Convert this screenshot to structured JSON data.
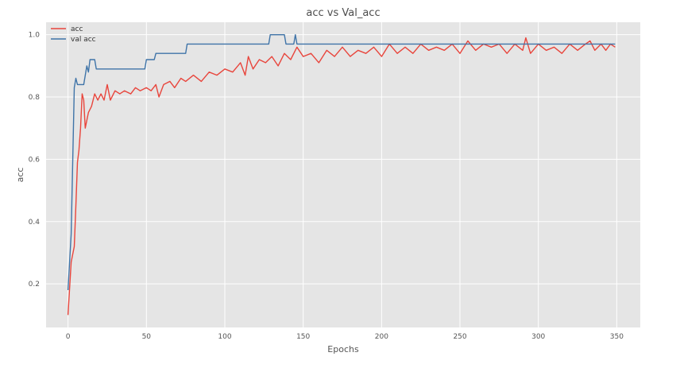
{
  "chart_data": {
    "type": "line",
    "title": "acc vs Val_acc",
    "xlabel": "Epochs",
    "ylabel": "acc",
    "xlim": [
      -14,
      365
    ],
    "ylim": [
      0.06,
      1.04
    ],
    "xticks": [
      0,
      50,
      100,
      150,
      200,
      250,
      300,
      350
    ],
    "yticks": [
      0.2,
      0.4,
      0.6,
      0.8,
      1.0
    ],
    "grid": true,
    "legend_position": "top-left",
    "background_color": "#e5e5e5",
    "series": [
      {
        "name": "acc",
        "color": "#e8453c",
        "points": [
          [
            0,
            0.1
          ],
          [
            2,
            0.27
          ],
          [
            4,
            0.32
          ],
          [
            5,
            0.45
          ],
          [
            6,
            0.59
          ],
          [
            7,
            0.63
          ],
          [
            8,
            0.7
          ],
          [
            9,
            0.81
          ],
          [
            10,
            0.79
          ],
          [
            11,
            0.7
          ],
          [
            13,
            0.75
          ],
          [
            15,
            0.77
          ],
          [
            17,
            0.81
          ],
          [
            19,
            0.79
          ],
          [
            21,
            0.81
          ],
          [
            23,
            0.79
          ],
          [
            25,
            0.84
          ],
          [
            27,
            0.79
          ],
          [
            30,
            0.82
          ],
          [
            33,
            0.81
          ],
          [
            36,
            0.82
          ],
          [
            40,
            0.81
          ],
          [
            43,
            0.83
          ],
          [
            46,
            0.82
          ],
          [
            50,
            0.83
          ],
          [
            53,
            0.82
          ],
          [
            56,
            0.84
          ],
          [
            58,
            0.8
          ],
          [
            61,
            0.84
          ],
          [
            65,
            0.85
          ],
          [
            68,
            0.83
          ],
          [
            72,
            0.86
          ],
          [
            75,
            0.85
          ],
          [
            80,
            0.87
          ],
          [
            85,
            0.85
          ],
          [
            90,
            0.88
          ],
          [
            95,
            0.87
          ],
          [
            100,
            0.89
          ],
          [
            105,
            0.88
          ],
          [
            110,
            0.91
          ],
          [
            113,
            0.87
          ],
          [
            115,
            0.93
          ],
          [
            118,
            0.89
          ],
          [
            122,
            0.92
          ],
          [
            126,
            0.91
          ],
          [
            130,
            0.93
          ],
          [
            134,
            0.9
          ],
          [
            138,
            0.94
          ],
          [
            142,
            0.92
          ],
          [
            146,
            0.96
          ],
          [
            150,
            0.93
          ],
          [
            155,
            0.94
          ],
          [
            160,
            0.91
          ],
          [
            165,
            0.95
          ],
          [
            170,
            0.93
          ],
          [
            175,
            0.96
          ],
          [
            180,
            0.93
          ],
          [
            185,
            0.95
          ],
          [
            190,
            0.94
          ],
          [
            195,
            0.96
          ],
          [
            200,
            0.93
          ],
          [
            205,
            0.97
          ],
          [
            210,
            0.94
          ],
          [
            215,
            0.96
          ],
          [
            220,
            0.94
          ],
          [
            225,
            0.97
          ],
          [
            230,
            0.95
          ],
          [
            235,
            0.96
          ],
          [
            240,
            0.95
          ],
          [
            245,
            0.97
          ],
          [
            250,
            0.94
          ],
          [
            255,
            0.98
          ],
          [
            260,
            0.95
          ],
          [
            265,
            0.97
          ],
          [
            270,
            0.96
          ],
          [
            275,
            0.97
          ],
          [
            280,
            0.94
          ],
          [
            285,
            0.97
          ],
          [
            290,
            0.95
          ],
          [
            292,
            0.99
          ],
          [
            295,
            0.94
          ],
          [
            300,
            0.97
          ],
          [
            305,
            0.95
          ],
          [
            310,
            0.96
          ],
          [
            315,
            0.94
          ],
          [
            320,
            0.97
          ],
          [
            325,
            0.95
          ],
          [
            330,
            0.97
          ],
          [
            333,
            0.98
          ],
          [
            336,
            0.95
          ],
          [
            340,
            0.97
          ],
          [
            343,
            0.95
          ],
          [
            346,
            0.97
          ],
          [
            349,
            0.96
          ]
        ]
      },
      {
        "name": "val acc",
        "color": "#3f74a8",
        "points": [
          [
            0,
            0.18
          ],
          [
            2,
            0.36
          ],
          [
            3,
            0.6
          ],
          [
            4,
            0.83
          ],
          [
            5,
            0.86
          ],
          [
            6,
            0.84
          ],
          [
            8,
            0.84
          ],
          [
            10,
            0.84
          ],
          [
            12,
            0.9
          ],
          [
            13,
            0.88
          ],
          [
            14,
            0.92
          ],
          [
            17,
            0.92
          ],
          [
            18,
            0.89
          ],
          [
            20,
            0.89
          ],
          [
            48,
            0.89
          ],
          [
            49,
            0.89
          ],
          [
            50,
            0.92
          ],
          [
            55,
            0.92
          ],
          [
            56,
            0.94
          ],
          [
            72,
            0.94
          ],
          [
            75,
            0.94
          ],
          [
            76,
            0.97
          ],
          [
            128,
            0.97
          ],
          [
            129,
            1.0
          ],
          [
            138,
            1.0
          ],
          [
            139,
            0.97
          ],
          [
            144,
            0.97
          ],
          [
            145,
            1.0
          ],
          [
            146,
            0.97
          ],
          [
            349,
            0.97
          ]
        ]
      }
    ]
  }
}
